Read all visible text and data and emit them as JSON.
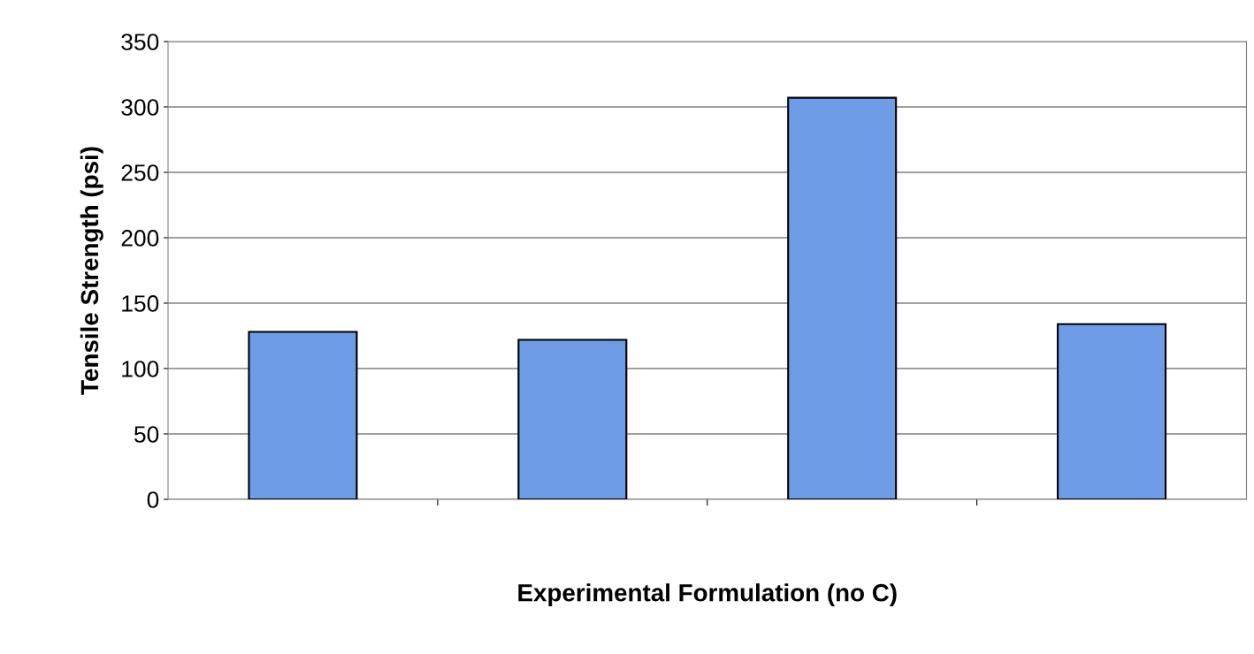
{
  "chart_data": {
    "type": "bar",
    "xlabel": "Experimental Formulation (no C)",
    "ylabel": "Tensile Strength (psi)",
    "categories": [
      null,
      null,
      null,
      null
    ],
    "values": [
      128,
      122,
      307,
      134
    ],
    "color": "#6f9ce6",
    "ylim": [
      0,
      350
    ],
    "yticks": [
      0,
      50,
      100,
      150,
      200,
      250,
      300,
      350
    ],
    "grid": "y",
    "legend": false
  }
}
